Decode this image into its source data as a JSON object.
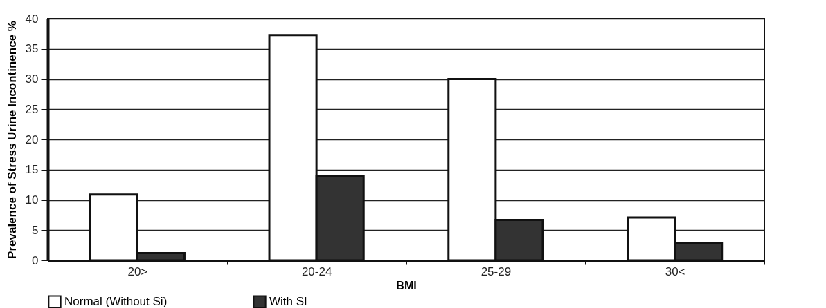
{
  "chart_data": {
    "type": "bar",
    "xlabel": "BMI",
    "ylabel": "Prevalence of Stress Urine Incontinence %",
    "categories": [
      "20>",
      "20-24",
      "25-29",
      "30<"
    ],
    "series": [
      {
        "name": "Normal (Without Si)",
        "color": "#ffffff",
        "values": [
          10.9,
          37.3,
          30,
          7.1
        ]
      },
      {
        "name": "With SI",
        "color": "#333333",
        "values": [
          1.2,
          14,
          6.7,
          2.8
        ]
      }
    ],
    "ylim": [
      0,
      40
    ],
    "yticks": [
      0,
      5,
      10,
      15,
      20,
      25,
      30,
      35,
      40
    ],
    "grid": "y",
    "legend": "bottom"
  }
}
